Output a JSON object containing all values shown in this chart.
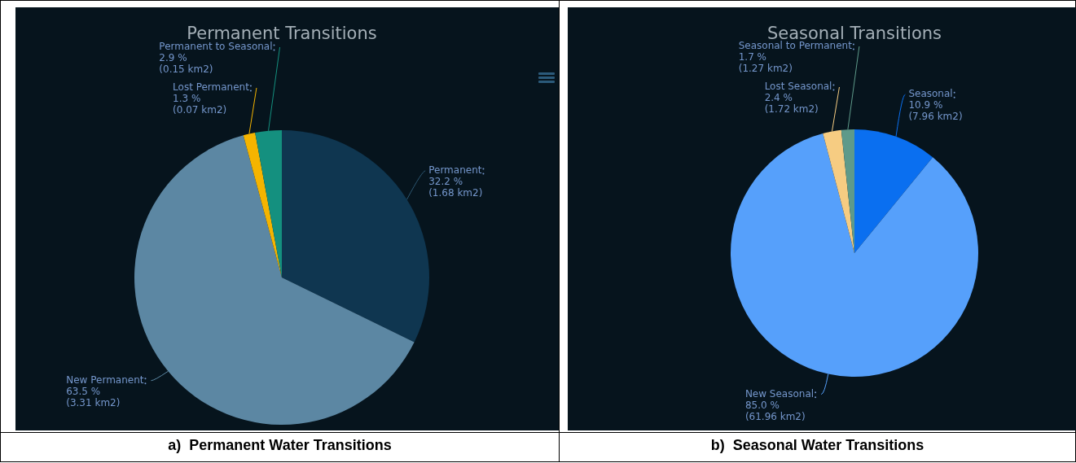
{
  "chart_data": [
    {
      "type": "pie",
      "title": "Permanent Transitions",
      "categories": [
        "Permanent",
        "New Permanent",
        "Lost Permanent",
        "Permanent to Seasonal"
      ],
      "values": [
        32.2,
        63.5,
        1.3,
        2.9
      ],
      "colors": [
        "#0f3650",
        "#5c87a3",
        "#f5b400",
        "#14907f"
      ],
      "value_labels": [
        "32.2 %\n(1.68 km2)",
        "63.5 %\n(3.31 km2)",
        "1.3 %\n(0.07 km2)",
        "2.9 %\n(0.15 km2)"
      ],
      "annotations": [
        "a)  Permanent Water Transitions"
      ]
    },
    {
      "type": "pie",
      "title": "Seasonal Transitions",
      "categories": [
        "Seasonal",
        "New Seasonal",
        "Lost Seasonal",
        "Seasonal to Permanent"
      ],
      "values": [
        10.9,
        85.0,
        2.4,
        1.7
      ],
      "colors": [
        "#0a6ff0",
        "#56a0fb",
        "#f6cc82",
        "#5e9a8a"
      ],
      "value_labels": [
        "10.9 %\n(7.96 km2)",
        "85.0 %\n(61.96 km2)",
        "2.4 %\n(1.72 km2)",
        "1.7 %\n(1.27 km2)"
      ],
      "annotations": [
        "b)  Seasonal Water Transitions"
      ]
    }
  ]
}
